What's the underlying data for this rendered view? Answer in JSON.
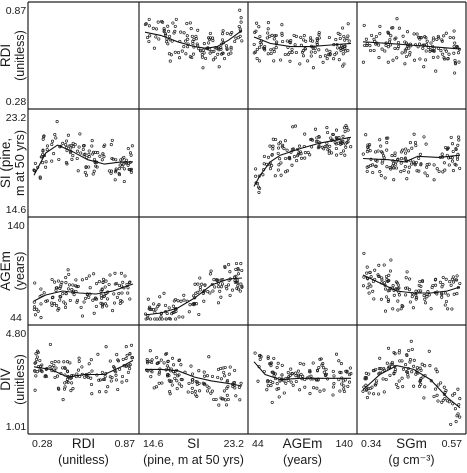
{
  "chart_data": {
    "type": "scatter-matrix",
    "variables": [
      {
        "key": "RDI",
        "name": "RDI",
        "unit": "(unitless)",
        "ticks": [
          "0.28",
          "0.87"
        ],
        "range": [
          0.28,
          0.87
        ]
      },
      {
        "key": "SI",
        "name": "SI",
        "unit": "(pine, m at 50 yrs)",
        "ticks": [
          "14.6",
          "23.2"
        ],
        "range": [
          14.6,
          23.2
        ]
      },
      {
        "key": "AGEm",
        "name": "AGEm",
        "unit": "(years)",
        "ticks": [
          "44",
          "140"
        ],
        "range": [
          44,
          140
        ]
      },
      {
        "key": "DIV",
        "name": "DIV",
        "unit": "(unitless)",
        "ticks": [
          "1.01",
          "4.80"
        ],
        "range": [
          1.01,
          4.8
        ]
      },
      {
        "key": "SGm",
        "name": "SGm",
        "unit": "(g cm⁻³)",
        "ticks": [
          "0.34",
          "0.57"
        ],
        "range": [
          0.34,
          0.57
        ]
      }
    ],
    "row_labels": [
      {
        "name": "RDI",
        "unit": "(unitless)"
      },
      {
        "name": "SI (pine,",
        "unit": "m at 50 yrs)"
      },
      {
        "name": "AGEm",
        "unit": "(years)"
      },
      {
        "name": "DIV",
        "unit": "(unitless)"
      }
    ],
    "col_labels": [
      {
        "name": "RDI",
        "unit": "(unitless)"
      },
      {
        "name": "SI",
        "unit": "(pine, m at 50 yrs)"
      },
      {
        "name": "AGEm",
        "unit": "(years)"
      },
      {
        "name": "SGm",
        "unit": "(g cm⁻³)"
      }
    ],
    "rows": [
      "RDI",
      "SI",
      "AGEm",
      "DIV"
    ],
    "cols": [
      "RDI",
      "SI",
      "AGEm",
      "SGm"
    ],
    "panels": [
      {
        "row": "RDI",
        "col": "RDI",
        "empty": true
      },
      {
        "row": "RDI",
        "col": "SI",
        "n": 130,
        "smooth": [
          [
            14.6,
            0.72
          ],
          [
            16.0,
            0.7
          ],
          [
            17.5,
            0.66
          ],
          [
            19.0,
            0.63
          ],
          [
            20.0,
            0.62
          ],
          [
            21.0,
            0.63
          ],
          [
            22.0,
            0.67
          ],
          [
            23.2,
            0.73
          ]
        ]
      },
      {
        "row": "RDI",
        "col": "AGEm",
        "n": 130,
        "smooth": [
          [
            44,
            0.69
          ],
          [
            60,
            0.65
          ],
          [
            80,
            0.63
          ],
          [
            100,
            0.63
          ],
          [
            120,
            0.64
          ],
          [
            140,
            0.65
          ]
        ]
      },
      {
        "row": "RDI",
        "col": "SGm",
        "n": 130,
        "smooth": [
          [
            0.34,
            0.66
          ],
          [
            0.4,
            0.65
          ],
          [
            0.45,
            0.64
          ],
          [
            0.5,
            0.63
          ],
          [
            0.55,
            0.62
          ],
          [
            0.57,
            0.615
          ]
        ]
      },
      {
        "row": "SI",
        "col": "RDI",
        "n": 130,
        "smooth": [
          [
            0.28,
            17.8
          ],
          [
            0.35,
            19.8
          ],
          [
            0.42,
            20.5
          ],
          [
            0.5,
            20.0
          ],
          [
            0.6,
            19.2
          ],
          [
            0.7,
            18.8
          ],
          [
            0.8,
            19.0
          ],
          [
            0.87,
            19.0
          ]
        ]
      },
      {
        "row": "SI",
        "col": "SI",
        "empty": true
      },
      {
        "row": "SI",
        "col": "AGEm",
        "n": 130,
        "smooth": [
          [
            44,
            16.8
          ],
          [
            50,
            17.8
          ],
          [
            60,
            19.0
          ],
          [
            70,
            19.6
          ],
          [
            90,
            20.2
          ],
          [
            110,
            20.7
          ],
          [
            140,
            21.2
          ]
        ]
      },
      {
        "row": "SI",
        "col": "SGm",
        "n": 130,
        "smooth": [
          [
            0.34,
            19.3
          ],
          [
            0.4,
            19.2
          ],
          [
            0.44,
            19.0
          ],
          [
            0.47,
            19.5
          ],
          [
            0.52,
            19.4
          ],
          [
            0.57,
            19.6
          ]
        ]
      },
      {
        "row": "AGEm",
        "col": "RDI",
        "n": 130,
        "smooth": [
          [
            0.28,
            62
          ],
          [
            0.35,
            68
          ],
          [
            0.45,
            72
          ],
          [
            0.55,
            70
          ],
          [
            0.65,
            69
          ],
          [
            0.75,
            72
          ],
          [
            0.87,
            79
          ]
        ]
      },
      {
        "row": "AGEm",
        "col": "SI",
        "n": 130,
        "smooth": [
          [
            14.6,
            48
          ],
          [
            16.0,
            50
          ],
          [
            17.5,
            55
          ],
          [
            19.0,
            65
          ],
          [
            20.5,
            78
          ],
          [
            22.0,
            84
          ],
          [
            23.2,
            85
          ]
        ]
      },
      {
        "row": "AGEm",
        "col": "AGEm",
        "empty": true
      },
      {
        "row": "AGEm",
        "col": "SGm",
        "n": 130,
        "smooth": [
          [
            0.34,
            88
          ],
          [
            0.38,
            80
          ],
          [
            0.42,
            72
          ],
          [
            0.46,
            70
          ],
          [
            0.5,
            70
          ],
          [
            0.54,
            72
          ],
          [
            0.57,
            76
          ]
        ]
      },
      {
        "row": "DIV",
        "col": "RDI",
        "n": 130,
        "smooth": [
          [
            0.28,
            3.4
          ],
          [
            0.38,
            3.3
          ],
          [
            0.48,
            3.0
          ],
          [
            0.58,
            3.1
          ],
          [
            0.7,
            3.1
          ],
          [
            0.8,
            3.4
          ],
          [
            0.87,
            3.65
          ]
        ]
      },
      {
        "row": "DIV",
        "col": "SI",
        "n": 130,
        "smooth": [
          [
            14.6,
            3.3
          ],
          [
            16.0,
            3.3
          ],
          [
            17.5,
            3.25
          ],
          [
            19.0,
            3.0
          ],
          [
            20.5,
            2.85
          ],
          [
            22.0,
            2.75
          ],
          [
            23.2,
            2.65
          ]
        ]
      },
      {
        "row": "DIV",
        "col": "AGEm",
        "n": 130,
        "smooth": [
          [
            44,
            3.6
          ],
          [
            55,
            3.1
          ],
          [
            70,
            2.9
          ],
          [
            90,
            2.95
          ],
          [
            110,
            2.95
          ],
          [
            140,
            2.95
          ]
        ]
      },
      {
        "row": "DIV",
        "col": "SGm",
        "n": 130,
        "smooth": [
          [
            0.34,
            2.5
          ],
          [
            0.38,
            3.1
          ],
          [
            0.42,
            3.45
          ],
          [
            0.46,
            3.3
          ],
          [
            0.5,
            2.9
          ],
          [
            0.54,
            2.2
          ],
          [
            0.57,
            1.8
          ]
        ]
      }
    ]
  }
}
